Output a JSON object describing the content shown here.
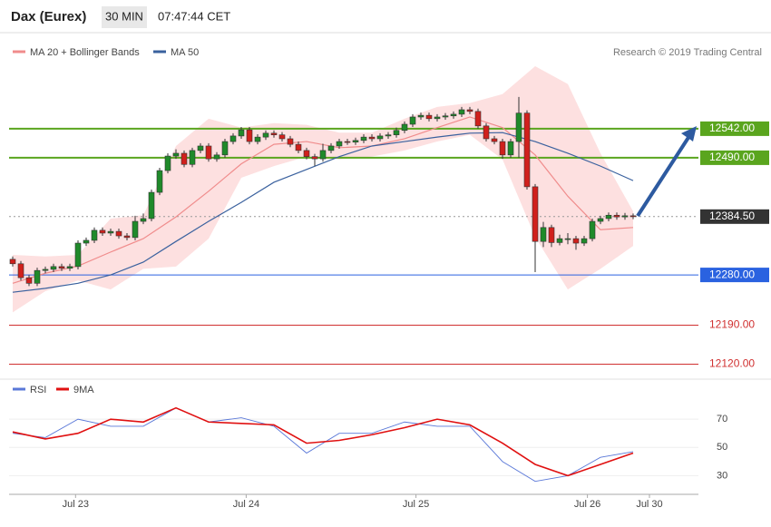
{
  "header": {
    "symbol": "Dax (Eurex)",
    "interval": "30 MIN",
    "time": "07:47:44 CET",
    "attribution": "Research © 2019 Trading Central"
  },
  "chart_data": [
    {
      "type": "candlestick",
      "xlim": [
        0,
        88
      ],
      "ylim": [
        12090,
        12680
      ],
      "up_color": "#1f8a2a",
      "down_color": "#d0201c",
      "x": [
        0,
        1,
        2,
        3,
        4,
        5,
        6,
        7,
        8,
        9,
        10,
        11,
        12,
        13,
        14,
        15,
        16,
        17,
        18,
        19,
        20,
        21,
        22,
        23,
        24,
        25,
        26,
        27,
        28,
        29,
        30,
        31,
        32,
        33,
        34,
        35,
        36,
        37,
        38,
        39,
        40,
        41,
        42,
        43,
        44,
        45,
        46,
        47,
        48,
        49,
        50,
        51,
        52,
        53,
        54,
        55,
        56,
        57,
        58,
        59,
        60,
        61,
        62,
        63,
        64,
        65,
        66,
        67,
        68,
        69,
        70,
        71,
        72,
        73,
        74,
        75,
        76
      ],
      "open": [
        12308,
        12300,
        12275,
        12265,
        12288,
        12290,
        12295,
        12292,
        12295,
        12337,
        12342,
        12360,
        12355,
        12358,
        12350,
        12347,
        12376,
        12381,
        12428,
        12467,
        12493,
        12498,
        12478,
        12503,
        12511,
        12488,
        12495,
        12519,
        12529,
        12540,
        12519,
        12527,
        12534,
        12531,
        12524,
        12514,
        12503,
        12492,
        12488,
        12503,
        12511,
        12519,
        12518,
        12521,
        12527,
        12524,
        12529,
        12531,
        12539,
        12550,
        12563,
        12566,
        12560,
        12563,
        12565,
        12568,
        12576,
        12573,
        12547,
        12524,
        12519,
        12495,
        12519,
        12570,
        12438,
        12340,
        12365,
        12338,
        12345,
        12345,
        12337,
        12345,
        12376,
        12381,
        12387,
        12384,
        12386
      ],
      "high": [
        12313,
        12305,
        12280,
        12293,
        12295,
        12300,
        12300,
        12300,
        12342,
        12347,
        12365,
        12365,
        12363,
        12363,
        12355,
        12386,
        12390,
        12433,
        12472,
        12498,
        12505,
        12503,
        12508,
        12516,
        12516,
        12500,
        12524,
        12534,
        12545,
        12545,
        12532,
        12539,
        12539,
        12536,
        12529,
        12519,
        12508,
        12497,
        12515,
        12516,
        12524,
        12524,
        12526,
        12532,
        12532,
        12534,
        12536,
        12544,
        12555,
        12568,
        12571,
        12571,
        12568,
        12570,
        12573,
        12581,
        12581,
        12578,
        12552,
        12529,
        12524,
        12524,
        12599,
        12575,
        12443,
        12375,
        12370,
        12352,
        12355,
        12350,
        12350,
        12381,
        12386,
        12392,
        12392,
        12391,
        12390
      ],
      "low": [
        12295,
        12270,
        12260,
        12260,
        12283,
        12285,
        12287,
        12287,
        12290,
        12332,
        12337,
        12350,
        12350,
        12345,
        12342,
        12342,
        12371,
        12376,
        12423,
        12462,
        12488,
        12473,
        12473,
        12498,
        12483,
        12483,
        12490,
        12514,
        12524,
        12514,
        12514,
        12522,
        12526,
        12519,
        12509,
        12498,
        12487,
        12475,
        12483,
        12498,
        12506,
        12513,
        12513,
        12516,
        12519,
        12519,
        12524,
        12526,
        12534,
        12545,
        12558,
        12555,
        12555,
        12558,
        12560,
        12563,
        12568,
        12542,
        12519,
        12514,
        12488,
        12490,
        12490,
        12433,
        12285,
        12330,
        12330,
        12333,
        12335,
        12325,
        12332,
        12340,
        12371,
        12376,
        12379,
        12379,
        12380
      ],
      "close": [
        12300,
        12275,
        12265,
        12288,
        12290,
        12295,
        12292,
        12295,
        12337,
        12342,
        12360,
        12355,
        12358,
        12350,
        12347,
        12376,
        12381,
        12428,
        12467,
        12493,
        12498,
        12478,
        12503,
        12511,
        12488,
        12495,
        12519,
        12529,
        12540,
        12519,
        12527,
        12534,
        12531,
        12524,
        12514,
        12503,
        12492,
        12488,
        12503,
        12511,
        12519,
        12518,
        12521,
        12527,
        12524,
        12529,
        12531,
        12539,
        12550,
        12563,
        12566,
        12560,
        12563,
        12565,
        12568,
        12576,
        12573,
        12547,
        12524,
        12519,
        12495,
        12519,
        12570,
        12438,
        12340,
        12365,
        12338,
        12345,
        12345,
        12337,
        12345,
        12376,
        12381,
        12387,
        12384,
        12386,
        12384.5
      ],
      "overlays": {
        "x": [
          0,
          4,
          8,
          12,
          16,
          20,
          24,
          28,
          32,
          36,
          40,
          44,
          48,
          52,
          56,
          60,
          64,
          68,
          72,
          76
        ],
        "band_color": "#fde0e0",
        "band_upper": [
          12316,
          12313,
          12316,
          12381,
          12387,
          12511,
          12560,
          12544,
          12552,
          12549,
          12535,
          12535,
          12560,
          12581,
          12588,
          12604,
          12654,
          12622,
          12498,
          12394
        ],
        "band_lower": [
          12213,
          12251,
          12270,
          12254,
          12291,
          12295,
          12345,
          12454,
          12475,
          12492,
          12487,
          12492,
          12503,
          12519,
          12531,
          12487,
          12348,
          12254,
          12291,
          12332
        ],
        "series": [
          {
            "name": "MA 20 + Bollinger Bands",
            "color": "#f08c8c",
            "values": [
              12265,
              12283,
              12296,
              12321,
              12345,
              12384,
              12430,
              12479,
              12514,
              12519,
              12508,
              12511,
              12524,
              12544,
              12563,
              12544,
              12495,
              12421,
              12361,
              12365
            ]
          },
          {
            "name": "MA 50",
            "color": "#3a619e",
            "values": [
              12249,
              12256,
              12265,
              12280,
              12303,
              12340,
              12376,
              12410,
              12446,
              12469,
              12492,
              12511,
              12519,
              12527,
              12534,
              12535,
              12519,
              12498,
              12475,
              12449
            ]
          }
        ]
      },
      "levels": [
        {
          "value": 12542,
          "label": "12542.00",
          "color": "#5aa51e",
          "label_box": true,
          "dotted": false
        },
        {
          "value": 12490,
          "label": "12490.00",
          "color": "#5aa51e",
          "label_box": true,
          "dotted": false
        },
        {
          "value": 12384.5,
          "label": "12384.50",
          "color": "#333333",
          "label_box": true,
          "dotted": true
        },
        {
          "value": 12280,
          "label": "12280.00",
          "color": "#2a62e0",
          "label_box": true,
          "dotted": false
        },
        {
          "value": 12190,
          "label": "12190.00",
          "color": "#d03030",
          "label_box": false,
          "dotted": false
        },
        {
          "value": 12120,
          "label": "12120.00",
          "color": "#d03030",
          "label_box": false,
          "dotted": false
        }
      ]
    },
    {
      "type": "line",
      "xlim": [
        0,
        88
      ],
      "ylim": [
        20,
        90
      ],
      "yticks": [
        30,
        50,
        70
      ],
      "xticks": [
        {
          "value": 7.7,
          "label": "Jul 23"
        },
        {
          "value": 28.6,
          "label": "Jul 24"
        },
        {
          "value": 49.4,
          "label": "Jul 25"
        },
        {
          "value": 70.4,
          "label": "Jul 26"
        },
        {
          "value": 78,
          "label": "Jul 30"
        }
      ],
      "x": [
        0,
        4,
        8,
        12,
        16,
        20,
        24,
        28,
        32,
        36,
        40,
        44,
        48,
        52,
        56,
        60,
        64,
        68,
        72,
        76
      ],
      "series": [
        {
          "name": "RSI",
          "color": "#5a78d8",
          "values": [
            60,
            57,
            70,
            65,
            65,
            78,
            68,
            71,
            65,
            46,
            60,
            60,
            68,
            65,
            65,
            40,
            26,
            30,
            43,
            47
          ]
        },
        {
          "name": "9MA",
          "color": "#e01010",
          "values": [
            61,
            56,
            60,
            70,
            68,
            78,
            68,
            67,
            66,
            53,
            55,
            59,
            64,
            70,
            66,
            53,
            38,
            30,
            38,
            46
          ]
        }
      ]
    }
  ]
}
